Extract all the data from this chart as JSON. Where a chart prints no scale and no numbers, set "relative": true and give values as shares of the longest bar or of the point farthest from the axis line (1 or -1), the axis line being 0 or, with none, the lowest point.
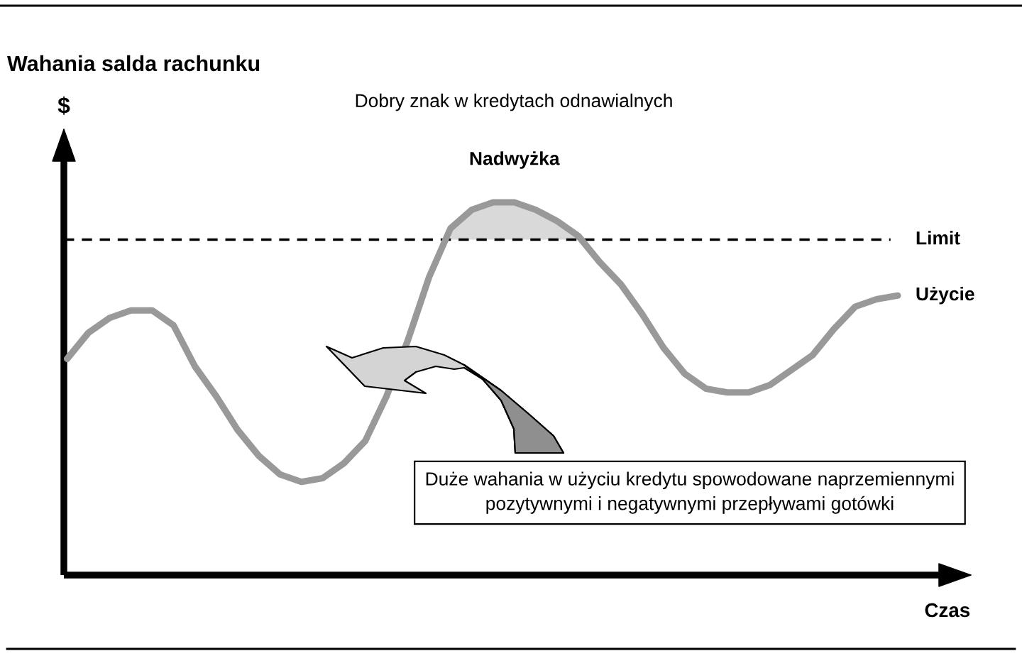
{
  "chart_data": {
    "type": "line",
    "title": "Wahania salda rachunku",
    "subtitle": "Dobry znak w kredytach odnawialnych",
    "xlabel": "Czas",
    "ylabel": "$",
    "categories": [
      null,
      null,
      null,
      null,
      null,
      null,
      null,
      null,
      null,
      null,
      null,
      null,
      null,
      null,
      null,
      null,
      null,
      null,
      null,
      null,
      null,
      null,
      null,
      null,
      null,
      null,
      null,
      null,
      null,
      null,
      null,
      null,
      null,
      null,
      null,
      null,
      null,
      null,
      null,
      null
    ],
    "relative": true,
    "series": [
      {
        "name": "Użycie",
        "color": "#999999",
        "values": [
          0.58,
          0.65,
          0.69,
          0.71,
          0.71,
          0.67,
          0.56,
          0.48,
          0.39,
          0.32,
          0.27,
          0.25,
          0.26,
          0.3,
          0.36,
          0.48,
          0.63,
          0.8,
          0.93,
          0.98,
          1.0,
          1.0,
          0.98,
          0.95,
          0.91,
          0.84,
          0.78,
          0.7,
          0.61,
          0.54,
          0.5,
          0.49,
          0.49,
          0.51,
          0.55,
          0.59,
          0.66,
          0.72,
          0.74,
          0.75
        ]
      },
      {
        "name": "Nadwyżka",
        "type": "area",
        "color": "#d9d9d9",
        "values": [
          null,
          null,
          null,
          null,
          null,
          null,
          null,
          null,
          null,
          null,
          null,
          null,
          null,
          null,
          null,
          null,
          null,
          null,
          0.93,
          0.98,
          1.0,
          1.0,
          0.98,
          0.95,
          0.91,
          null,
          null,
          null,
          null,
          null,
          null,
          null,
          null,
          null,
          null,
          null,
          null,
          null,
          null,
          null
        ]
      }
    ],
    "ref_lines": [
      {
        "axis": "y",
        "value": 0.9,
        "label": "Limit",
        "line_style": "dashed",
        "color": "#000000"
      }
    ],
    "annotations": [
      "Duże wahania w użyciu kredytu spowodowane naprzemiennymi\npozytywnymi i negatywnymi przepływami gotówki"
    ]
  }
}
